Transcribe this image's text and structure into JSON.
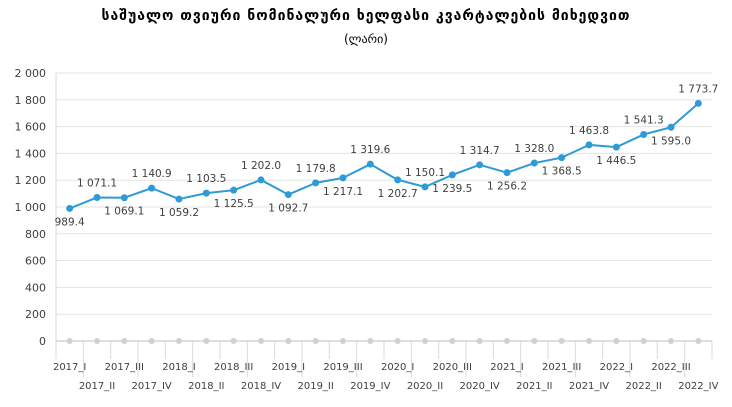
{
  "chart_data": {
    "type": "line",
    "title": "საშუალო თვიური ნომინალური ხელფასი კვარტალების მიხედვით",
    "subtitle": "(ლარი)",
    "xlabel": "",
    "ylabel": "",
    "ylim": [
      0,
      2000
    ],
    "yticks": [
      0,
      200,
      400,
      600,
      800,
      1000,
      1200,
      1400,
      1600,
      1800,
      2000
    ],
    "ytick_labels": [
      "0",
      "200",
      "400",
      "600",
      "800",
      "1 000",
      "1 200",
      "1 400",
      "1 600",
      "1 800",
      "2 000"
    ],
    "grid": true,
    "legend": "none",
    "color": "#2e9bd6",
    "categories": [
      "2017_I",
      "2017_II",
      "2017_III",
      "2017_IV",
      "2018_I",
      "2018_II",
      "2018_III",
      "2018_IV",
      "2019_I",
      "2019_II",
      "2019_III",
      "2019_IV",
      "2020_I",
      "2020_II",
      "2020_III",
      "2020_IV",
      "2021_I",
      "2021_II",
      "2021_III",
      "2021_IV",
      "2022_I",
      "2022_II",
      "2022_III",
      "2022_IV"
    ],
    "values": [
      989.4,
      1071.1,
      1069.1,
      1140.9,
      1059.2,
      1103.5,
      1125.5,
      1202.0,
      1092.7,
      1179.8,
      1217.1,
      1319.6,
      1202.7,
      1150.1,
      1239.5,
      1314.7,
      1256.2,
      1328.0,
      1368.5,
      1463.8,
      1446.5,
      1541.3,
      1595.0,
      1773.7
    ],
    "value_labels": [
      "989.4",
      "1 071.1",
      "1 069.1",
      "1 140.9",
      "1 059.2",
      "1 103.5",
      "1 125.5",
      "1 202.0",
      "1 092.7",
      "1 179.8",
      "1 217.1",
      "1 319.6",
      "1 202.7",
      "1 150.1",
      "1 239.5",
      "1 314.7",
      "1 256.2",
      "1 328.0",
      "1 368.5",
      "1 463.8",
      "1 446.5",
      "1 541.3",
      "1 595.0",
      "1 773.7"
    ],
    "label_positions": [
      "below",
      "above",
      "below",
      "above",
      "below",
      "above",
      "below",
      "above",
      "below",
      "above",
      "below",
      "above",
      "below",
      "above",
      "below",
      "above",
      "below",
      "above",
      "below",
      "above",
      "below",
      "above",
      "below",
      "above"
    ]
  }
}
